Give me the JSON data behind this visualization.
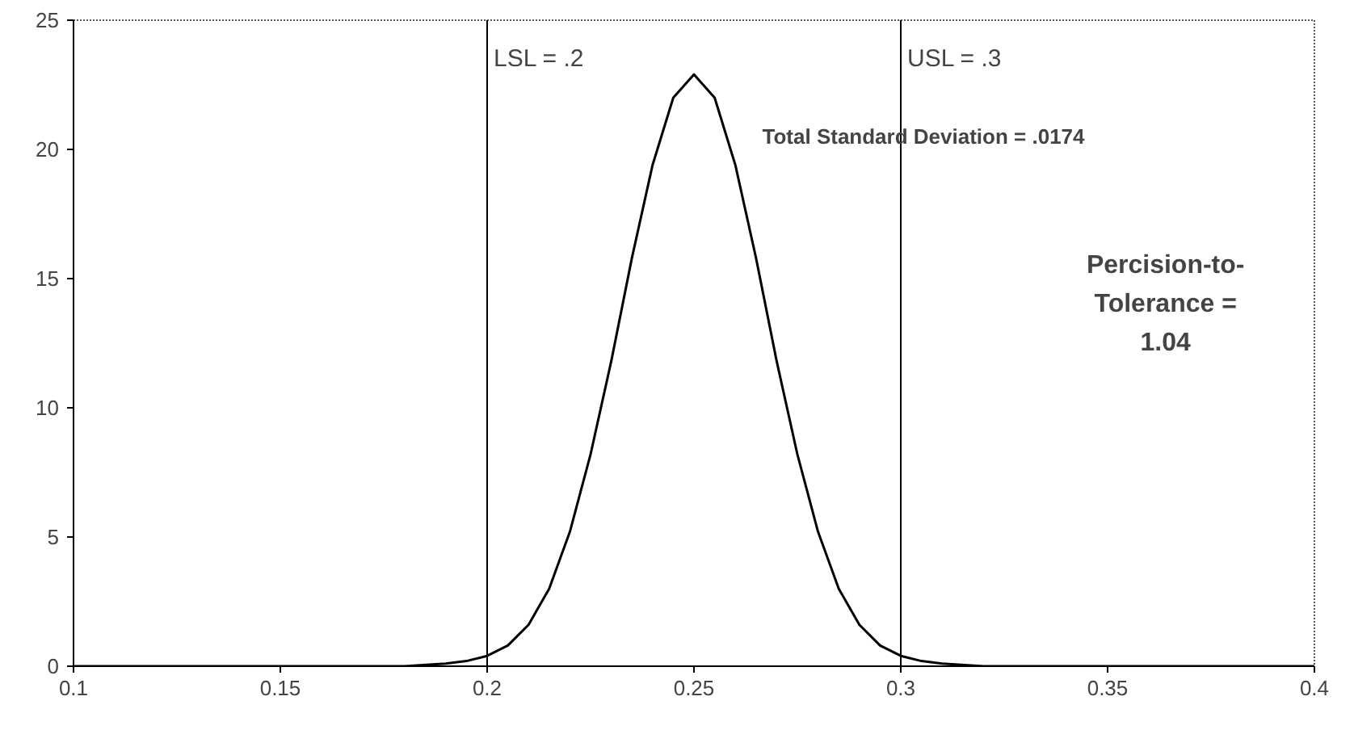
{
  "chart_data": {
    "type": "line",
    "xlim": [
      0.1,
      0.4
    ],
    "ylim": [
      0,
      25
    ],
    "xticks": [
      0.1,
      0.15,
      0.2,
      0.25,
      0.3,
      0.35,
      0.4
    ],
    "yticks": [
      0,
      5,
      10,
      15,
      20,
      25
    ],
    "grid": false,
    "marker": "none",
    "line_style": "solid",
    "series": [
      {
        "color": "#000000",
        "x": [
          0.1,
          0.15,
          0.18,
          0.19,
          0.195,
          0.2,
          0.205,
          0.21,
          0.215,
          0.22,
          0.225,
          0.23,
          0.235,
          0.24,
          0.245,
          0.25,
          0.255,
          0.26,
          0.265,
          0.27,
          0.275,
          0.28,
          0.285,
          0.29,
          0.295,
          0.3,
          0.305,
          0.31,
          0.32,
          0.35,
          0.4
        ],
        "values": [
          0,
          0,
          0,
          0.1,
          0.2,
          0.4,
          0.8,
          1.6,
          3.0,
          5.2,
          8.2,
          11.8,
          15.8,
          19.4,
          22.0,
          22.9,
          22.0,
          19.4,
          15.8,
          11.8,
          8.2,
          5.2,
          3.0,
          1.6,
          0.8,
          0.4,
          0.2,
          0.1,
          0,
          0,
          0
        ]
      }
    ],
    "ref_lines": [
      {
        "axis": "x",
        "value": 0.2,
        "label": "LSL = .2",
        "color": "#000000",
        "line_style": "solid"
      },
      {
        "axis": "x",
        "value": 0.3,
        "label": "USL = .3",
        "color": "#000000",
        "line_style": "solid"
      }
    ],
    "annotations": [
      "Total Standard Deviation = .0174",
      "Percision-to-\nTolerance =\n1.04"
    ]
  }
}
